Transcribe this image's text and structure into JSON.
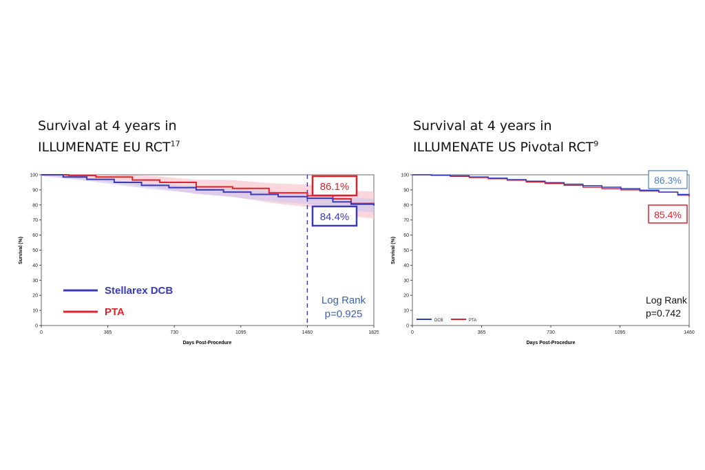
{
  "panels": [
    {
      "title_line1": "Survival at 4 years in",
      "title_line2": "ILLUMENATE EU RCT",
      "title_sup": "17"
    },
    {
      "title_line1": "Survival at 4 years in",
      "title_line2": "ILLUMENATE US Pivotal RCT",
      "title_sup": "9"
    }
  ],
  "chart_data": [
    {
      "type": "line",
      "xlabel": "Days Post-Procedure",
      "ylabel": "Survival (%)",
      "xlim": [
        0,
        1825
      ],
      "ylim": [
        0,
        100
      ],
      "xticks": [
        "0",
        "365",
        "730",
        "1095",
        "1460",
        "1825"
      ],
      "yticks": [
        "0",
        "10",
        "20",
        "30",
        "40",
        "50",
        "60",
        "70",
        "80",
        "90",
        "100"
      ],
      "legend_position": "bottom-left",
      "reference_line_x": 1460,
      "series": [
        {
          "name": "Stellarex DCB",
          "color": "#3a3ab8",
          "x": [
            0,
            120,
            250,
            400,
            550,
            700,
            850,
            1000,
            1150,
            1300,
            1460,
            1600,
            1700,
            1825
          ],
          "y": [
            100,
            98.5,
            97,
            95,
            93,
            91.5,
            90,
            88.5,
            87,
            85.5,
            84.4,
            82,
            80.5,
            79.5
          ]
        },
        {
          "name": "PTA",
          "color": "#e0202a",
          "x": [
            0,
            150,
            300,
            500,
            650,
            850,
            1050,
            1250,
            1460,
            1600,
            1700,
            1825
          ],
          "y": [
            100,
            99.5,
            98.5,
            96.5,
            95,
            92,
            91,
            88,
            86.1,
            84,
            81,
            80
          ]
        }
      ],
      "annotations": [
        {
          "text": "86.1%",
          "color": "#e0202a"
        },
        {
          "text": "84.4%",
          "color": "#3a3ab8"
        }
      ],
      "stat_line1": "Log Rank",
      "stat_line2": "p=0.925"
    },
    {
      "type": "line",
      "xlabel": "Days Post-Procedure",
      "ylabel": "Survival (%)",
      "xlim": [
        0,
        1460
      ],
      "ylim": [
        0,
        100
      ],
      "xticks": [
        "0",
        "365",
        "730",
        "1095",
        "1460"
      ],
      "yticks": [
        "0",
        "10",
        "20",
        "30",
        "40",
        "50",
        "60",
        "70",
        "80",
        "90",
        "100"
      ],
      "legend_position": "bottom-left",
      "series": [
        {
          "name": "DCB",
          "color": "#2a3fc0",
          "x": [
            0,
            100,
            200,
            300,
            400,
            500,
            600,
            700,
            800,
            900,
            1000,
            1100,
            1200,
            1300,
            1400,
            1460
          ],
          "y": [
            100,
            99.8,
            99.3,
            98.6,
            97.8,
            96.8,
            95.8,
            94.8,
            93.8,
            92.8,
            91.8,
            90.8,
            89.8,
            88.5,
            87,
            86.3
          ]
        },
        {
          "name": "PTA",
          "color": "#e0202a",
          "x": [
            0,
            100,
            200,
            300,
            400,
            500,
            600,
            700,
            800,
            900,
            1000,
            1100,
            1200,
            1300,
            1400,
            1460
          ],
          "y": [
            100,
            99.6,
            99,
            98.2,
            97.4,
            96.4,
            95.2,
            94.2,
            93,
            91.8,
            90.8,
            90,
            89.2,
            88.5,
            86.5,
            85.4
          ]
        }
      ],
      "annotations": [
        {
          "text": "86.3%",
          "color": "#4a7fc8"
        },
        {
          "text": "85.4%",
          "color": "#e0202a"
        }
      ],
      "stat_line1": "Log Rank",
      "stat_line2": "p=0.742"
    }
  ]
}
